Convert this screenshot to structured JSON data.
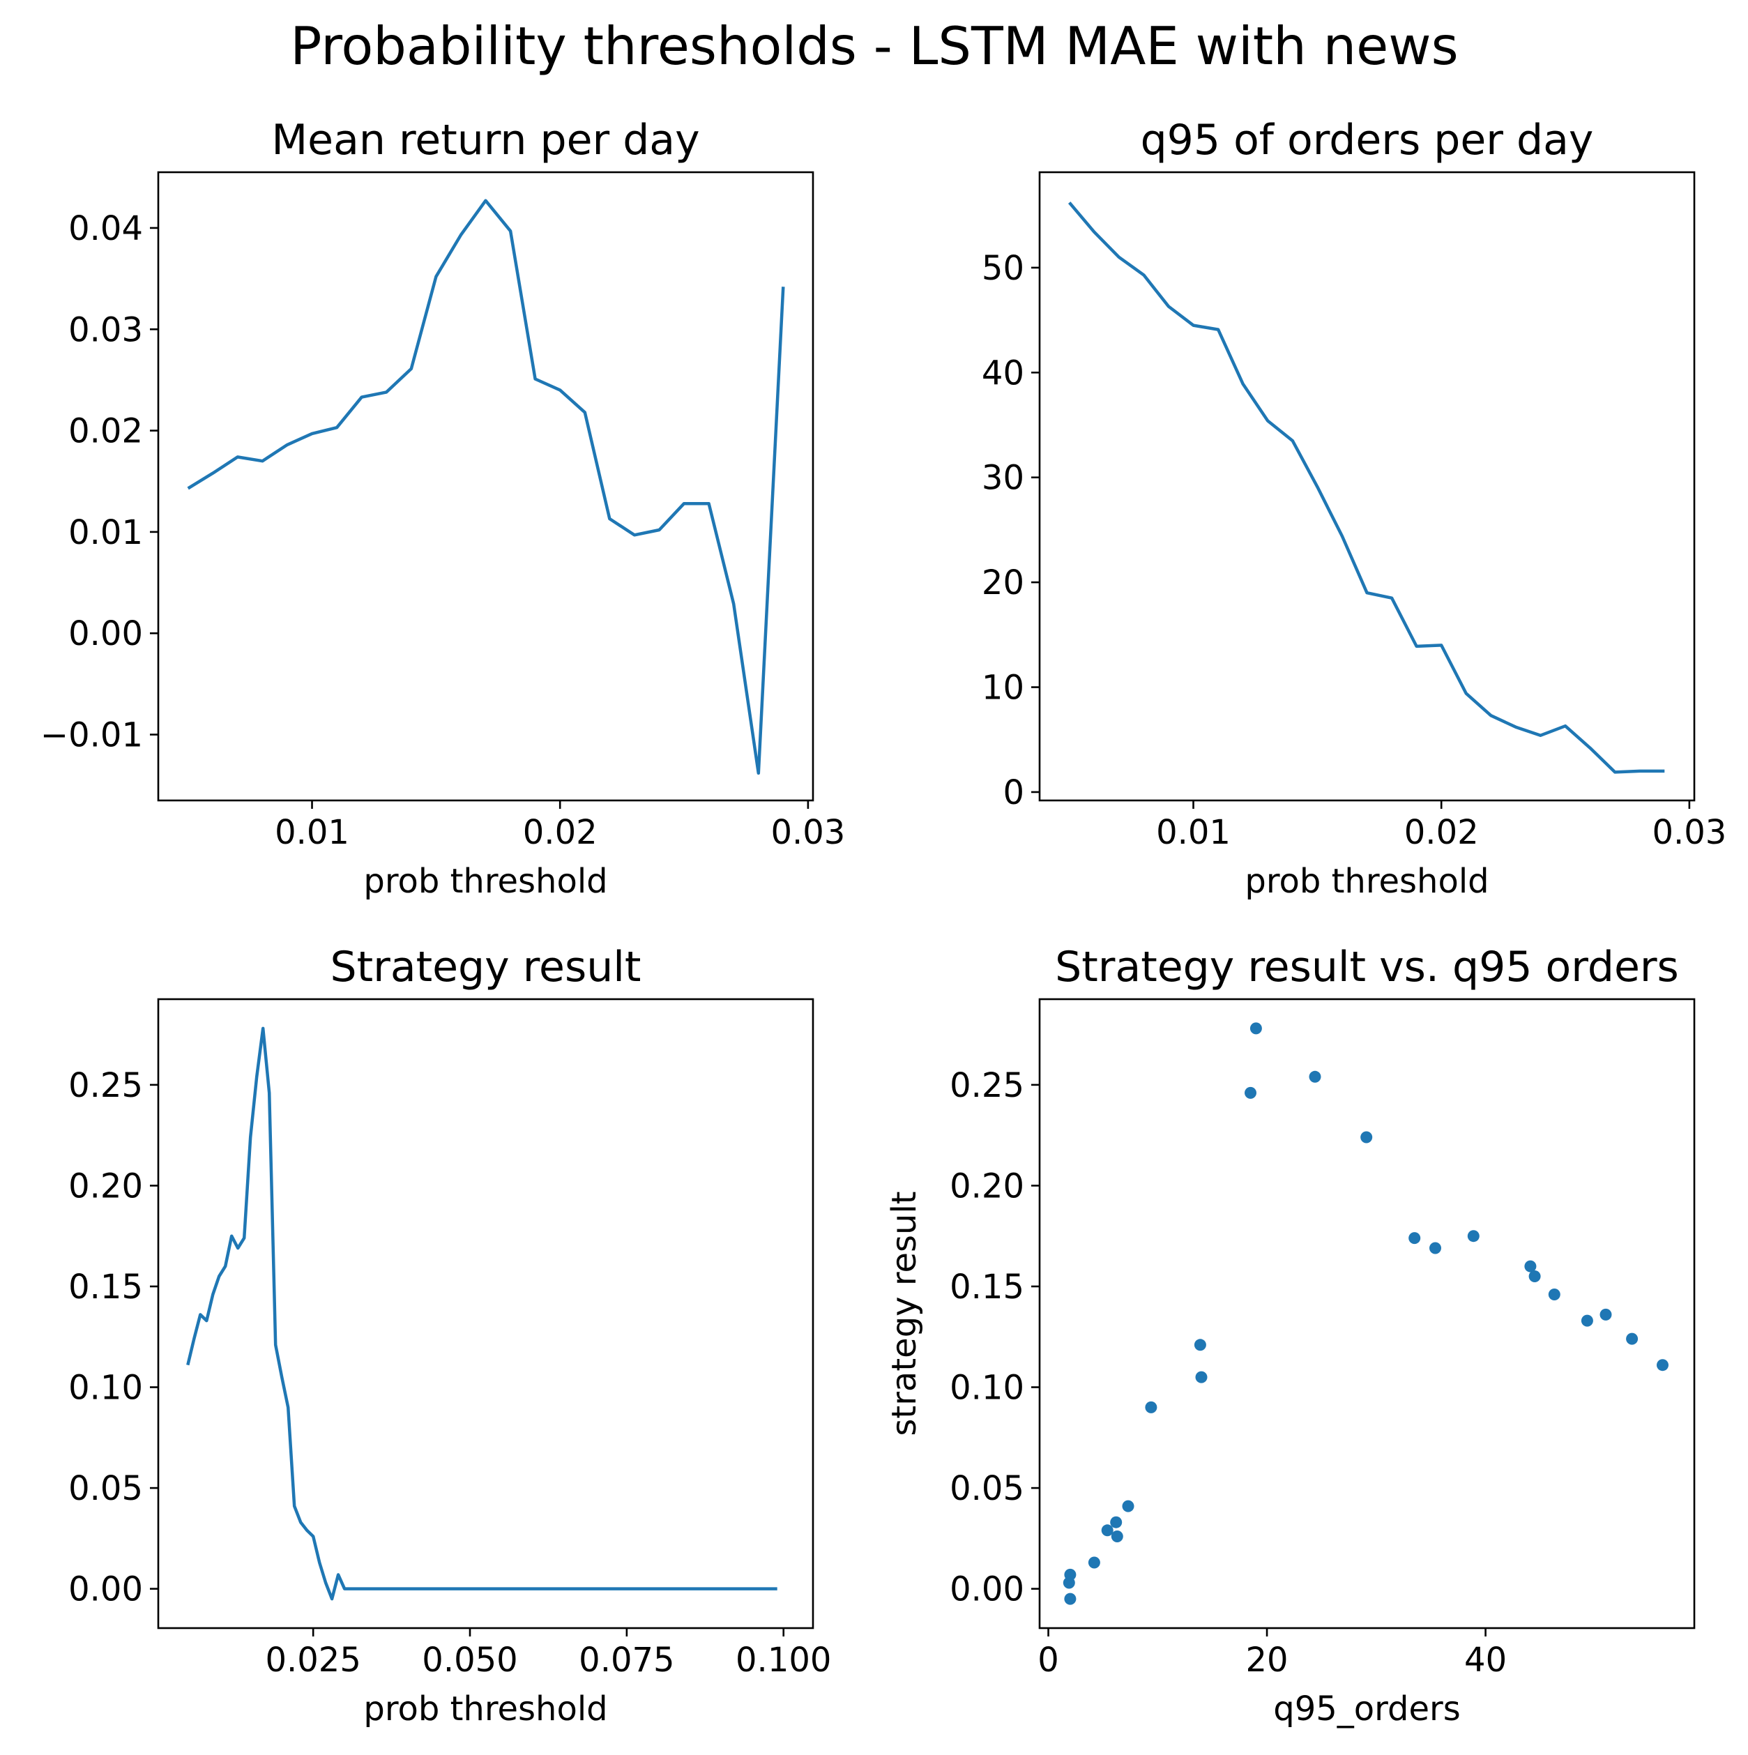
{
  "suptitle": "Probability thresholds - LSTM MAE with news",
  "colors": {
    "line": "#1f77b4",
    "frame": "#000000",
    "background": "#ffffff"
  },
  "chart_data": [
    {
      "id": "mean-return",
      "type": "line",
      "title": "Mean return per day",
      "xlabel": "prob threshold",
      "ylabel": "",
      "xlim": [
        0.0038,
        0.0302
      ],
      "ylim": [
        -0.0165,
        0.0455
      ],
      "xticks": [
        0.01,
        0.02,
        0.03
      ],
      "xtick_labels": [
        "0.01",
        "0.02",
        "0.03"
      ],
      "yticks": [
        -0.01,
        0.0,
        0.01,
        0.02,
        0.03,
        0.04
      ],
      "ytick_labels": [
        "−0.01",
        "0.00",
        "0.01",
        "0.02",
        "0.03",
        "0.04"
      ],
      "grid": false,
      "x": [
        0.005,
        0.006,
        0.007,
        0.008,
        0.009,
        0.01,
        0.011,
        0.012,
        0.013,
        0.014,
        0.015,
        0.016,
        0.017,
        0.018,
        0.019,
        0.02,
        0.021,
        0.022,
        0.023,
        0.024,
        0.025,
        0.026,
        0.027,
        0.028,
        0.029
      ],
      "series": [
        {
          "values": [
            0.0143,
            0.0158,
            0.0174,
            0.017,
            0.0186,
            0.0197,
            0.0203,
            0.0233,
            0.0238,
            0.0261,
            0.0352,
            0.0393,
            0.0427,
            0.0397,
            0.0251,
            0.024,
            0.0218,
            0.0113,
            0.0097,
            0.0102,
            0.0128,
            0.0128,
            0.0029,
            -0.0138,
            0.0342
          ]
        }
      ]
    },
    {
      "id": "q95-orders",
      "type": "line",
      "title": "q95 of orders per day",
      "xlabel": "prob threshold",
      "ylabel": "",
      "xlim": [
        0.0038,
        0.0302
      ],
      "ylim": [
        -0.8,
        59.1
      ],
      "xticks": [
        0.01,
        0.02,
        0.03
      ],
      "xtick_labels": [
        "0.01",
        "0.02",
        "0.03"
      ],
      "yticks": [
        0,
        10,
        20,
        30,
        40,
        50
      ],
      "ytick_labels": [
        "0",
        "10",
        "20",
        "30",
        "40",
        "50"
      ],
      "grid": false,
      "x": [
        0.005,
        0.006,
        0.007,
        0.008,
        0.009,
        0.01,
        0.011,
        0.012,
        0.013,
        0.014,
        0.015,
        0.016,
        0.017,
        0.018,
        0.019,
        0.02,
        0.021,
        0.022,
        0.023,
        0.024,
        0.025,
        0.026,
        0.027,
        0.028,
        0.029
      ],
      "series": [
        {
          "values": [
            56.2,
            53.4,
            51.0,
            49.3,
            46.3,
            44.5,
            44.1,
            38.9,
            35.4,
            33.5,
            29.1,
            24.4,
            19.0,
            18.5,
            13.9,
            14.0,
            9.4,
            7.3,
            6.2,
            5.4,
            6.3,
            4.2,
            1.9,
            2.0,
            2.0
          ]
        }
      ]
    },
    {
      "id": "strategy-result",
      "type": "line",
      "title": "Strategy result",
      "xlabel": "prob threshold",
      "ylabel": "",
      "xlim": [
        0.0003,
        0.1047
      ],
      "ylim": [
        -0.0195,
        0.2925
      ],
      "xticks": [
        0.025,
        0.05,
        0.075,
        0.1
      ],
      "xtick_labels": [
        "0.025",
        "0.050",
        "0.075",
        "0.100"
      ],
      "yticks": [
        0.0,
        0.05,
        0.1,
        0.15,
        0.2,
        0.25
      ],
      "ytick_labels": [
        "0.00",
        "0.05",
        "0.10",
        "0.15",
        "0.20",
        "0.25"
      ],
      "grid": false,
      "x": [
        0.005,
        0.006,
        0.007,
        0.008,
        0.009,
        0.01,
        0.011,
        0.012,
        0.013,
        0.014,
        0.015,
        0.016,
        0.017,
        0.018,
        0.019,
        0.02,
        0.021,
        0.022,
        0.023,
        0.024,
        0.025,
        0.026,
        0.027,
        0.028,
        0.029,
        0.03,
        0.099
      ],
      "series": [
        {
          "values": [
            0.111,
            0.124,
            0.136,
            0.133,
            0.146,
            0.155,
            0.16,
            0.175,
            0.169,
            0.174,
            0.224,
            0.254,
            0.278,
            0.246,
            0.121,
            0.105,
            0.09,
            0.041,
            0.033,
            0.029,
            0.026,
            0.013,
            0.003,
            -0.005,
            0.007,
            0.0,
            0.0
          ]
        }
      ]
    },
    {
      "id": "strategy-vs-orders",
      "type": "scatter",
      "title": "Strategy result vs. q95 orders",
      "xlabel": "q95_orders",
      "ylabel": "strategy result",
      "xlim": [
        -0.8,
        59.1
      ],
      "ylim": [
        -0.0195,
        0.2925
      ],
      "xticks": [
        0,
        20,
        40
      ],
      "xtick_labels": [
        "0",
        "20",
        "40"
      ],
      "yticks": [
        0.0,
        0.05,
        0.1,
        0.15,
        0.2,
        0.25
      ],
      "ytick_labels": [
        "0.00",
        "0.05",
        "0.10",
        "0.15",
        "0.20",
        "0.25"
      ],
      "grid": false,
      "x": [
        56.2,
        53.4,
        51.0,
        49.3,
        46.3,
        44.5,
        44.1,
        38.9,
        35.4,
        33.5,
        29.1,
        24.4,
        19.0,
        18.5,
        13.9,
        14.0,
        9.4,
        7.3,
        6.2,
        5.4,
        6.3,
        4.2,
        1.9,
        2.0,
        2.0
      ],
      "series": [
        {
          "values": [
            0.111,
            0.124,
            0.136,
            0.133,
            0.146,
            0.155,
            0.16,
            0.175,
            0.169,
            0.174,
            0.224,
            0.254,
            0.278,
            0.246,
            0.121,
            0.105,
            0.09,
            0.041,
            0.033,
            0.029,
            0.026,
            0.013,
            0.003,
            -0.005,
            0.007
          ]
        }
      ]
    }
  ]
}
